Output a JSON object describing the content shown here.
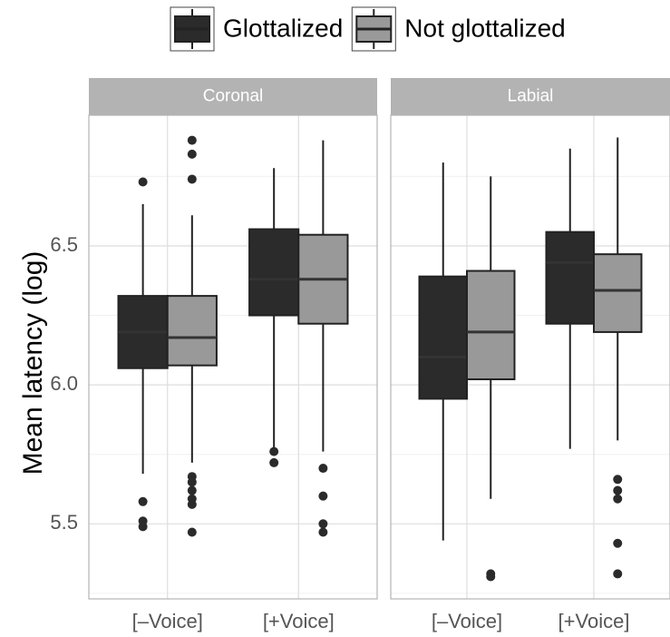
{
  "chart_data": {
    "type": "box",
    "y_label": "Mean latency (log)",
    "facets": [
      "Coronal",
      "Labial"
    ],
    "categories": [
      "[–Voice]",
      "[+Voice]"
    ],
    "ylim": [
      5.23,
      6.97
    ],
    "yticks": [
      5.5,
      {
        "value": 6,
        "label": "6.0"
      },
      6.5
    ],
    "y_minor_ticks": [
      5.25,
      5.75,
      6.25,
      6.75
    ],
    "grid": true,
    "legend_position": "top",
    "series": [
      {
        "name": "Glottalized",
        "color": "#2b2b2b",
        "values": [
          [
            {
              "low": 5.68,
              "q1": 6.06,
              "median": 6.19,
              "q3": 6.32,
              "high": 6.65,
              "outliers": [
                6.73,
                5.58,
                5.51,
                5.49
              ]
            },
            {
              "low": 5.77,
              "q1": 6.25,
              "median": 6.38,
              "q3": 6.56,
              "high": 6.78,
              "outliers": [
                5.76,
                5.72
              ]
            }
          ],
          [
            {
              "low": 5.44,
              "q1": 5.95,
              "median": 6.1,
              "q3": 6.39,
              "high": 6.8,
              "outliers": []
            },
            {
              "low": 5.77,
              "q1": 6.22,
              "median": 6.44,
              "q3": 6.55,
              "high": 6.85,
              "outliers": []
            }
          ]
        ]
      },
      {
        "name": "Not glottalized",
        "color": "#999999",
        "values": [
          [
            {
              "low": 5.72,
              "q1": 6.07,
              "median": 6.17,
              "q3": 6.32,
              "high": 6.61,
              "outliers": [
                6.88,
                6.83,
                6.74,
                5.67,
                5.65,
                5.62,
                5.59,
                5.57,
                5.47
              ]
            },
            {
              "low": 5.76,
              "q1": 6.22,
              "median": 6.38,
              "q3": 6.54,
              "high": 6.88,
              "outliers": [
                5.7,
                5.6,
                5.5,
                5.47
              ]
            }
          ],
          [
            {
              "low": 5.59,
              "q1": 6.02,
              "median": 6.19,
              "q3": 6.41,
              "high": 6.75,
              "outliers": [
                5.32,
                5.31
              ]
            },
            {
              "low": 5.8,
              "q1": 6.19,
              "median": 6.34,
              "q3": 6.47,
              "high": 6.89,
              "outliers": [
                5.66,
                5.62,
                5.59,
                5.43,
                5.32
              ]
            }
          ]
        ]
      }
    ]
  }
}
